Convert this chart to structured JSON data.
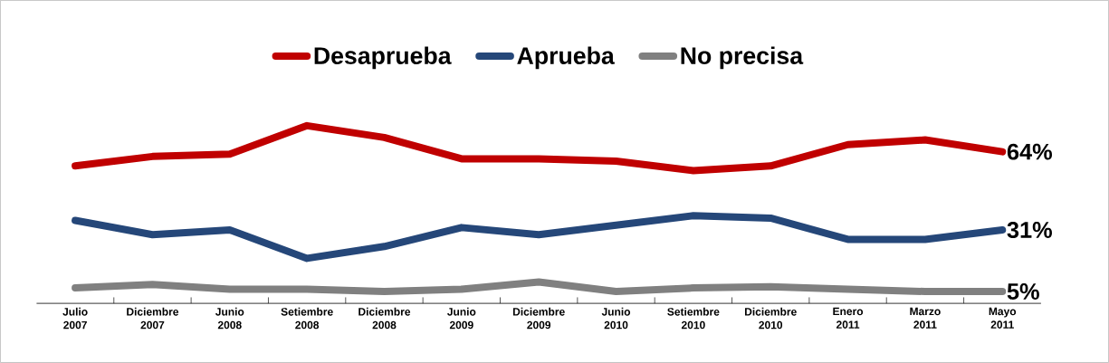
{
  "chart_data": {
    "type": "line",
    "categories": [
      "Julio 2007",
      "Diciembre 2007",
      "Junio 2008",
      "Setiembre 2008",
      "Diciembre 2008",
      "Junio 2009",
      "Diciembre 2009",
      "Junio 2010",
      "Setiembre 2010",
      "Diciembre 2010",
      "Enero 2011",
      "Marzo 2011",
      "Mayo 2011"
    ],
    "series": [
      {
        "name": "Desaprueba",
        "color": "#c00000",
        "values": [
          58,
          62,
          63,
          75,
          70,
          61,
          61,
          60,
          56,
          58,
          67,
          69,
          64
        ],
        "value_labels": [
          null,
          null,
          null,
          null,
          null,
          null,
          null,
          null,
          null,
          null,
          null,
          null,
          "64%"
        ]
      },
      {
        "name": "Aprueba",
        "color": "#254779",
        "values": [
          35,
          29,
          31,
          19,
          24,
          32,
          29,
          33,
          37,
          36,
          27,
          27,
          31
        ],
        "value_labels": [
          null,
          null,
          null,
          null,
          null,
          null,
          null,
          null,
          null,
          null,
          null,
          null,
          "31%"
        ]
      },
      {
        "name": "No precisa",
        "color": "#808080",
        "values": [
          6.5,
          8,
          6,
          6,
          5,
          6,
          9,
          5,
          6.5,
          7,
          6,
          5,
          5
        ],
        "value_labels": [
          null,
          null,
          null,
          null,
          null,
          null,
          null,
          null,
          null,
          null,
          null,
          null,
          "5%"
        ]
      }
    ],
    "tick_labels": "x",
    "legend": "top",
    "grid": false,
    "marker": "none",
    "line_style": "solid"
  }
}
